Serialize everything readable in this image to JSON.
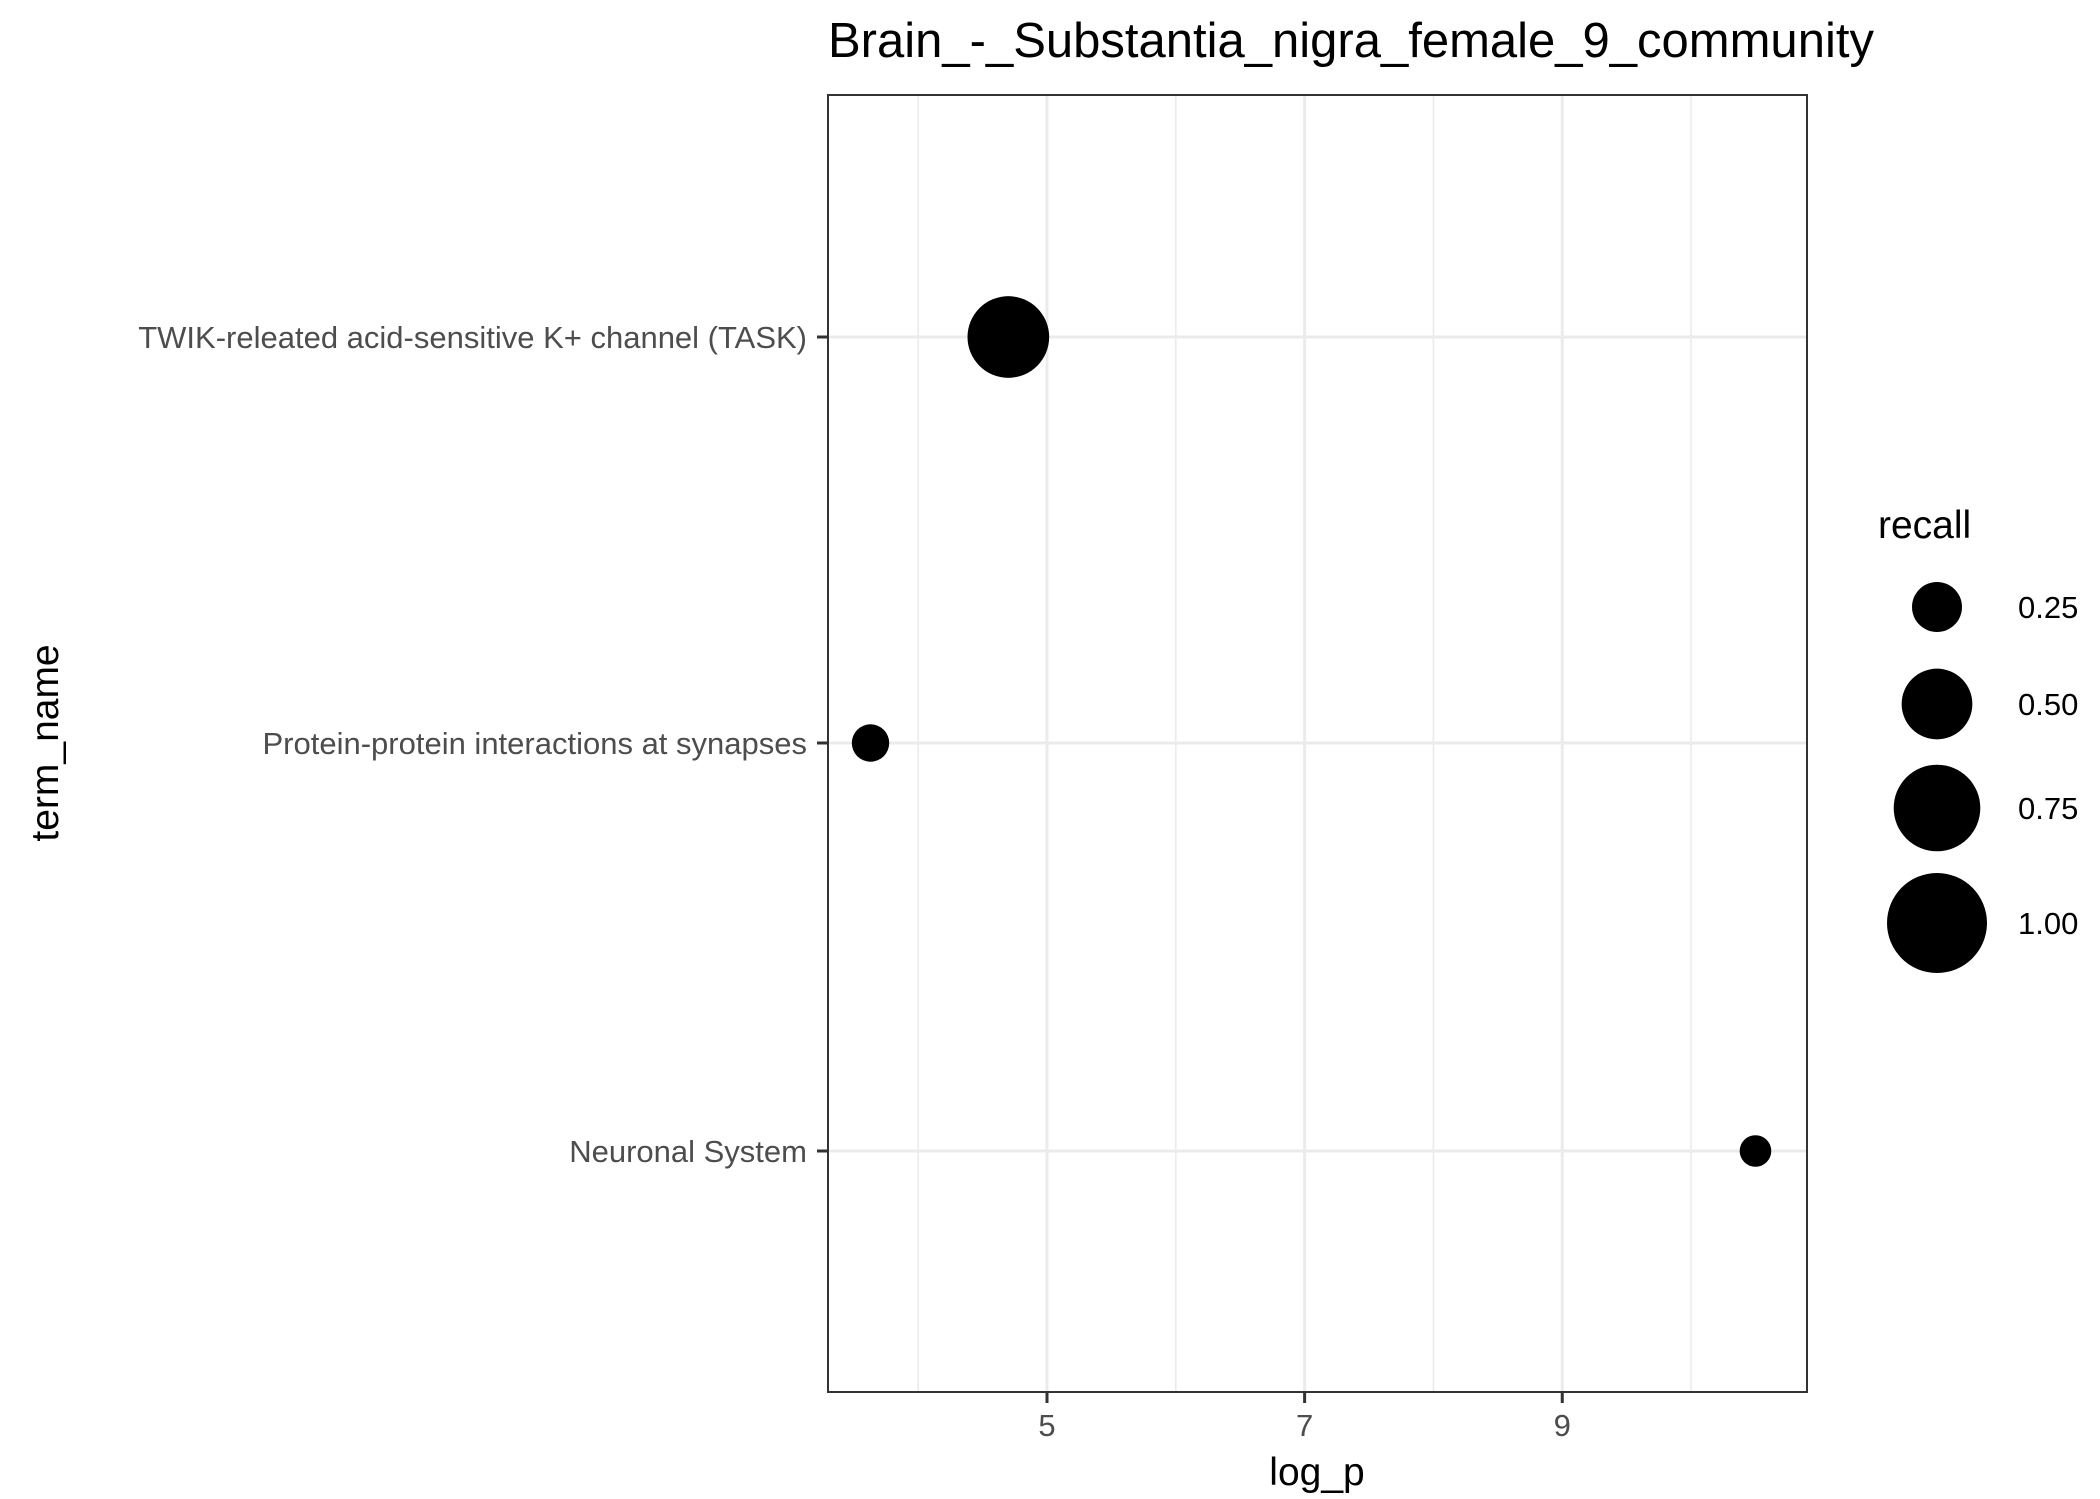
{
  "chart_data": {
    "type": "scatter",
    "title": "Brain_-_Substantia_nigra_female_9_community",
    "xlabel": "log_p",
    "ylabel": "term_name",
    "xlim": [
      3.3,
      10.9
    ],
    "x_ticks": [
      5,
      7,
      9
    ],
    "x_tick_labels": [
      "5",
      "7",
      "9"
    ],
    "categories": [
      "TWIK-releated acid-sensitive K+ channel (TASK)",
      "Protein-protein interactions at synapses",
      "Neuronal System"
    ],
    "points": [
      {
        "term_name": "TWIK-releated acid-sensitive K+ channel (TASK)",
        "log_p": 4.7,
        "recall": 0.667
      },
      {
        "term_name": "Protein-protein interactions at synapses",
        "log_p": 3.63,
        "recall": 0.14
      },
      {
        "term_name": "Neuronal System",
        "log_p": 10.5,
        "recall": 0.1
      }
    ],
    "size_legend": {
      "title": "recall",
      "values": [
        0.25,
        0.5,
        0.75,
        1.0
      ],
      "labels": [
        "0.25",
        "0.50",
        "0.75",
        "1.00"
      ]
    },
    "grid": true,
    "legend_position": "right",
    "colors": {
      "point": "#000000",
      "grid": "#ebebeb",
      "panel_border": "#333333",
      "tick_label": "#4d4d4d"
    }
  }
}
